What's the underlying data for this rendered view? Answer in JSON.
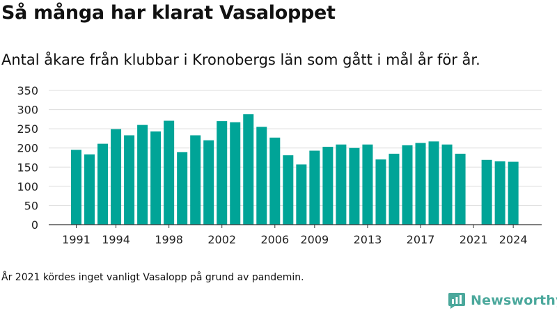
{
  "header": {
    "title": "Så många har klarat Vasaloppet",
    "subtitle": "Antal åkare från klubbar i Kronobergs län som gått i mål år för år."
  },
  "footer": {
    "note": "År 2021 kördes inget vanligt Vasalopp på grund av pandemin.",
    "brand": "Newsworthy",
    "brand_icon": "newsworthy-logo-icon"
  },
  "colors": {
    "bar": "#00a497",
    "grid": "#dddddd",
    "axis": "#333333",
    "brand": "#4ba89c"
  },
  "chart_data": {
    "type": "bar",
    "title": "Så många har klarat Vasaloppet",
    "subtitle": "Antal åkare från klubbar i Kronobergs län som gått i mål år för år.",
    "xlabel": "",
    "ylabel": "",
    "ylim": [
      0,
      350
    ],
    "yticks": [
      0,
      50,
      100,
      150,
      200,
      250,
      300,
      350
    ],
    "xticks": [
      1991,
      1994,
      1998,
      2002,
      2006,
      2009,
      2013,
      2017,
      2021,
      2024
    ],
    "grid": true,
    "legend": "none",
    "categories": [
      1991,
      1992,
      1993,
      1994,
      1995,
      1996,
      1997,
      1998,
      1999,
      2000,
      2001,
      2002,
      2003,
      2004,
      2005,
      2006,
      2007,
      2008,
      2009,
      2010,
      2011,
      2012,
      2013,
      2014,
      2015,
      2016,
      2017,
      2018,
      2019,
      2020,
      2021,
      2022,
      2023,
      2024
    ],
    "values": [
      195,
      183,
      211,
      249,
      233,
      260,
      243,
      271,
      189,
      233,
      220,
      270,
      267,
      288,
      255,
      227,
      181,
      157,
      193,
      203,
      209,
      200,
      209,
      170,
      185,
      207,
      213,
      217,
      209,
      185,
      null,
      169,
      165,
      164
    ]
  }
}
